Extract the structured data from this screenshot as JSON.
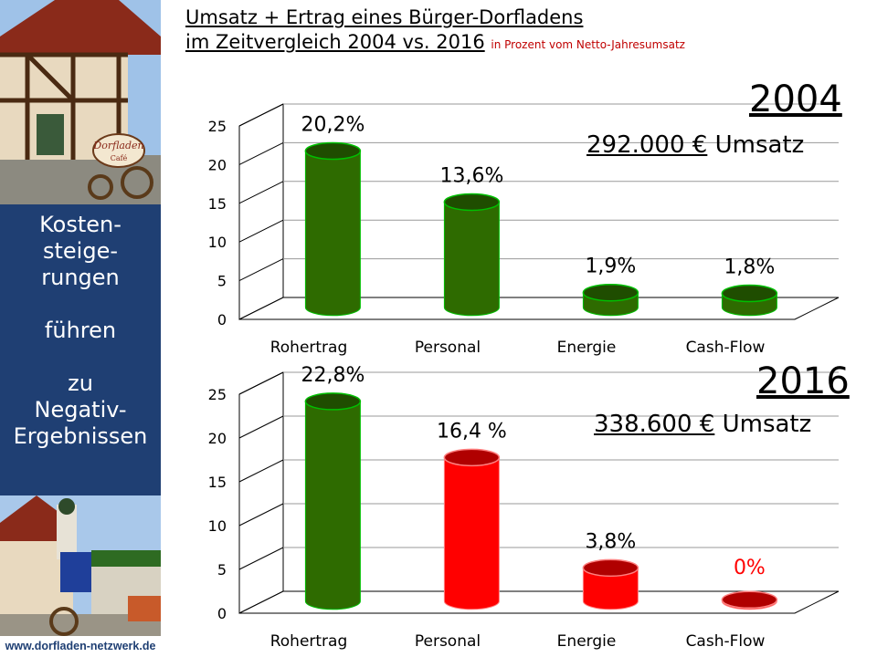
{
  "title": {
    "line1": "Umsatz + Ertrag eines Bürger-Dorfladens",
    "line2": "im Zeitvergleich 2004 vs. 2016",
    "note": "in Prozent vom Netto-Jahresumsatz"
  },
  "sidebar": {
    "lines": [
      "Kosten-",
      "steige-",
      "rungen",
      "",
      "führen",
      "",
      "zu",
      "Negativ-",
      "Ergebnissen"
    ],
    "url": "www.dorfladen-netzwerk.de",
    "shop_sign": "Dorfladen",
    "shop_sign_sub": "Café"
  },
  "panel_2004": {
    "year": "2004",
    "revenue_amount": "292.000 €",
    "revenue_word": " Umsatz"
  },
  "panel_2016": {
    "year": "2016",
    "revenue_amount": "338.600 €",
    "revenue_word": " Umsatz"
  },
  "colors": {
    "green": "#2e6b00",
    "red": "#ff0000",
    "sidebar": "#1f3f73",
    "zero_label": "#ff0000"
  },
  "chart_data": [
    {
      "type": "bar",
      "categories": [
        "Rohertrag",
        "Personal",
        "Energie",
        "Cash-Flow"
      ],
      "values": [
        20.2,
        13.6,
        1.9,
        1.8
      ],
      "data_labels": [
        "20,2%",
        "13,6%",
        "1,9%",
        "1,8%"
      ],
      "bar_colors": [
        "green",
        "green",
        "green",
        "green"
      ],
      "ylim": [
        0,
        25
      ],
      "yticks": [
        "0",
        "5",
        "10",
        "15",
        "20",
        "25"
      ]
    },
    {
      "type": "bar",
      "categories": [
        "Rohertrag",
        "Personal",
        "Energie",
        "Cash-Flow"
      ],
      "values": [
        22.8,
        16.4,
        3.8,
        0
      ],
      "data_labels": [
        "22,8%",
        "16,4 %",
        "3,8%",
        "0%"
      ],
      "bar_colors": [
        "green",
        "red",
        "red",
        "red"
      ],
      "ylim": [
        0,
        25
      ],
      "yticks": [
        "0",
        "5",
        "10",
        "15",
        "20",
        "25"
      ]
    }
  ]
}
